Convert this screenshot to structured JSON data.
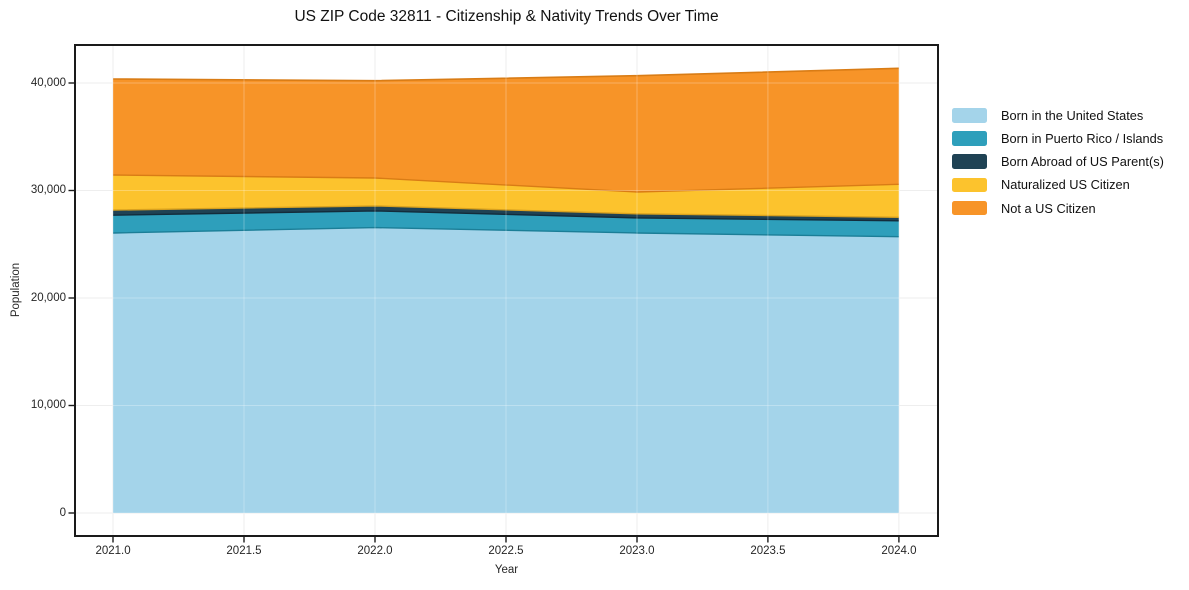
{
  "title": "US ZIP Code 32811 - Citizenship & Nativity Trends Over Time",
  "chart_data": {
    "type": "area",
    "stacked": true,
    "title": "US ZIP Code 32811 - Citizenship & Nativity Trends Over Time",
    "xlabel": "Year",
    "ylabel": "Population",
    "x": [
      2021,
      2022,
      2023,
      2024
    ],
    "series": [
      {
        "name": "Born in the United States",
        "color": "#a4d4ea",
        "edge": "#7ab5d6",
        "values": [
          26050,
          26550,
          26050,
          25700
        ]
      },
      {
        "name": "Born in Puerto Rico / Islands",
        "color": "#2e9fbb",
        "edge": "#1b7e97",
        "values": [
          1650,
          1550,
          1400,
          1480
        ]
      },
      {
        "name": "Born Abroad of US Parent(s)",
        "color": "#1f4254",
        "edge": "#132c3b",
        "values": [
          480,
          470,
          380,
          330
        ]
      },
      {
        "name": "Naturalized US Citizen",
        "color": "#fcc32d",
        "edge": "#d9a11e",
        "values": [
          3260,
          2590,
          2030,
          3070
        ]
      },
      {
        "name": "Not a US Citizen",
        "color": "#f79428",
        "edge": "#d97c15",
        "values": [
          8930,
          9050,
          10820,
          10790
        ]
      }
    ],
    "x_ticks": [
      "2021.0",
      "2021.5",
      "2022.0",
      "2022.5",
      "2023.0",
      "2023.5",
      "2024.0"
    ],
    "x_tick_values": [
      2021,
      2021.5,
      2022,
      2022.5,
      2023,
      2023.5,
      2024
    ],
    "y_ticks": [
      "0",
      "10,000",
      "20,000",
      "30,000",
      "40,000"
    ],
    "y_tick_values": [
      0,
      10000,
      20000,
      30000,
      40000
    ],
    "xlim": [
      2020.851,
      2024.153
    ],
    "ylim": [
      -2233,
      43628
    ],
    "grid": true,
    "legend_position": "right-outside"
  },
  "colors": {
    "background": "#ffffff",
    "spine": "#1a1a1a",
    "grid": "#e8e8e8",
    "grid_overlay": "rgba(255,255,255,0.28)",
    "text": "#1a1a1a"
  }
}
